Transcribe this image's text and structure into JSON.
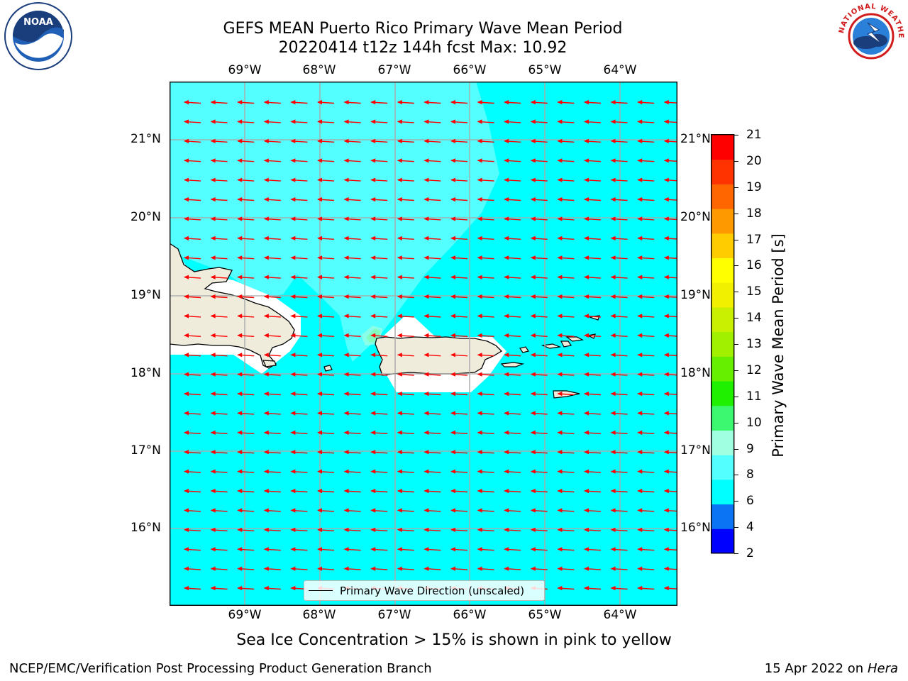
{
  "title_line1": "GEFS MEAN Puerto Rico Primary Wave Mean Period",
  "title_line2": "20220414 t12z 144h fcst   Max: 10.92",
  "lon_labels": [
    "69°W",
    "68°W",
    "67°W",
    "66°W",
    "65°W",
    "64°W"
  ],
  "lat_labels": [
    "21°N",
    "20°N",
    "19°N",
    "18°N",
    "17°N",
    "16°N"
  ],
  "colorbar": {
    "title": "Primary Wave Mean Period [s]",
    "ticks": [
      "21",
      "20",
      "19",
      "18",
      "17",
      "16",
      "15",
      "14",
      "13",
      "12",
      "11",
      "10",
      "9",
      "8",
      "6",
      "4",
      "2"
    ],
    "colors_bottom_to_top": [
      "#0000ff",
      "#0b74f4",
      "#00ffff",
      "#54ffff",
      "#a0ffe0",
      "#3cf870",
      "#1ef000",
      "#66f000",
      "#a0f000",
      "#c8f000",
      "#f0f000",
      "#ffff00",
      "#ffcc00",
      "#ff9900",
      "#ff6600",
      "#ff3300",
      "#ff0000"
    ]
  },
  "legend_label": "Primary Wave Direction (unscaled)",
  "ice_note": "Sea Ice Concentration > 15% is shown in pink to yellow",
  "footer_left": "NCEP/EMC/Verification Post Processing Product Generation Branch",
  "footer_date": "15 Apr 2022 on ",
  "footer_machine": "Hera",
  "logos": {
    "noaa": "NOAA",
    "nws": "NATIONAL WEATHER SERVICE"
  },
  "colors": {
    "ocean": "#00ffff",
    "ocean_light": "#54ffff",
    "land": "#efecdc",
    "arrow": "#ff0000",
    "grid": "#aaaaaa"
  },
  "wave_direction": "westward"
}
